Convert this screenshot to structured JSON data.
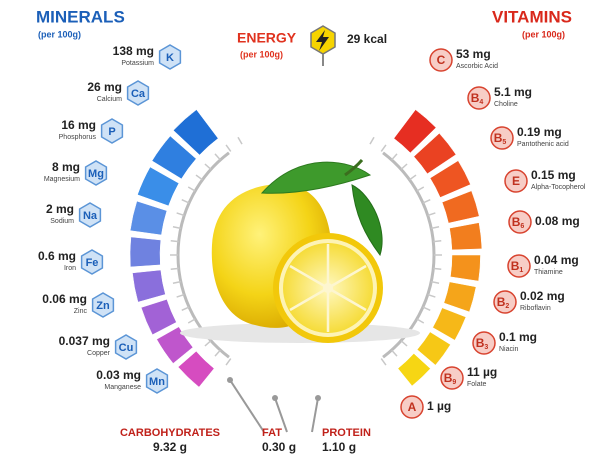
{
  "header": {
    "minerals_title": "MINERALS",
    "minerals_sub": "(per 100g)",
    "energy_title": "ENERGY",
    "energy_sub": "(per 100g)",
    "energy_value": "29 kcal",
    "vitamins_title": "VITAMINS",
    "vitamins_sub": "(per 100g)"
  },
  "minerals": [
    {
      "symbol": "K",
      "amount": "138 mg",
      "name": "Potassium"
    },
    {
      "symbol": "Ca",
      "amount": "26 mg",
      "name": "Calcium"
    },
    {
      "symbol": "P",
      "amount": "16 mg",
      "name": "Phosphorus"
    },
    {
      "symbol": "Mg",
      "amount": "8 mg",
      "name": "Magnesium"
    },
    {
      "symbol": "Na",
      "amount": "2 mg",
      "name": "Sodium"
    },
    {
      "symbol": "Fe",
      "amount": "0.6 mg",
      "name": "Iron"
    },
    {
      "symbol": "Zn",
      "amount": "0.06 mg",
      "name": "Zinc"
    },
    {
      "symbol": "Cu",
      "amount": "0.037 mg",
      "name": "Copper"
    },
    {
      "symbol": "Mn",
      "amount": "0.03 mg",
      "name": "Manganese"
    }
  ],
  "vitamins": [
    {
      "symbol": "C",
      "amount": "53 mg",
      "name": "Ascorbic Acid"
    },
    {
      "symbol": "B",
      "sub": "4",
      "amount": "5.1 mg",
      "name": "Choline"
    },
    {
      "symbol": "B",
      "sub": "5",
      "amount": "0.19 mg",
      "name": "Pantothenic acid"
    },
    {
      "symbol": "E",
      "amount": "0.15 mg",
      "name": "Alpha-Tocopherol"
    },
    {
      "symbol": "B",
      "sub": "6",
      "amount": "0.08 mg"
    },
    {
      "symbol": "B",
      "sub": "1",
      "amount": "0.04 mg",
      "name": "Thiamine"
    },
    {
      "symbol": "B",
      "sub": "2",
      "amount": "0.02 mg",
      "name": "Riboflavin"
    },
    {
      "symbol": "B",
      "sub": "3",
      "amount": "0.1 mg",
      "name": "Niacin"
    },
    {
      "symbol": "B",
      "sub": "9",
      "amount": "11 µg",
      "name": "Folate"
    },
    {
      "symbol": "A",
      "amount": "1 µg"
    }
  ],
  "macros": [
    {
      "label": "CARBOHYDRATES",
      "amount": "9.32 g"
    },
    {
      "label": "FAT",
      "amount": "0.30 g"
    },
    {
      "label": "PROTEIN",
      "amount": "1.10 g"
    }
  ]
}
